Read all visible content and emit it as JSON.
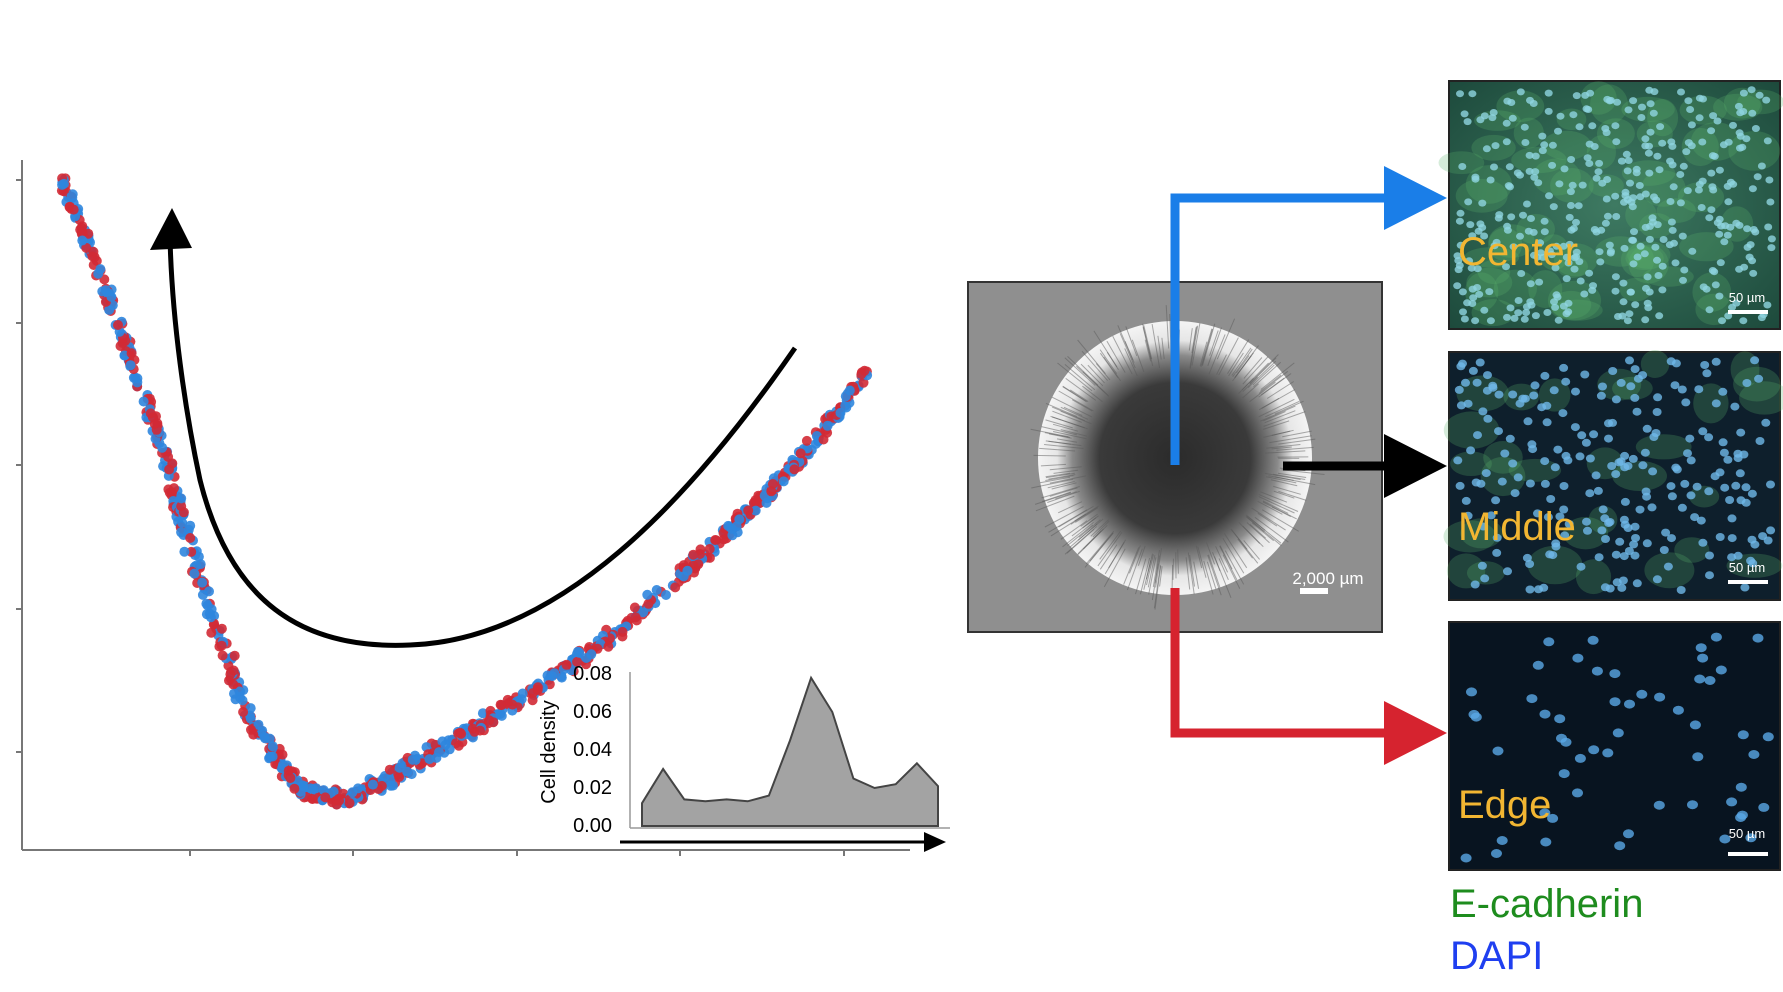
{
  "colors": {
    "series_a": "#d22a35",
    "series_b": "#2f86de",
    "center_arrow": "#1a7ee8",
    "middle_arrow": "#000000",
    "edge_arrow": "#d6232f",
    "panel_label": "#f2b632",
    "ecadherin": "#1e8c1e",
    "dapi": "#1f3ff0"
  },
  "colony": {
    "scale_label": "2,000 µm"
  },
  "panels": [
    {
      "label": "Center",
      "scale_label": "50 µm"
    },
    {
      "label": "Middle",
      "scale_label": "50 µm"
    },
    {
      "label": "Edge",
      "scale_label": "50 µm"
    }
  ],
  "legend": {
    "ecadherin": "E-cadherin",
    "dapi": "DAPI"
  },
  "inset": {
    "ylabel": "Cell density",
    "yticks": [
      "0.08",
      "0.06",
      "0.04",
      "0.02",
      "0.00"
    ],
    "ylim": [
      0,
      0.08
    ],
    "profile": [
      0.012,
      0.03,
      0.014,
      0.013,
      0.014,
      0.013,
      0.016,
      0.045,
      0.078,
      0.06,
      0.025,
      0.02,
      0.022,
      0.033,
      0.021
    ]
  },
  "scatter_icons": [
    "red-dot-icon",
    "blue-dot-icon"
  ]
}
